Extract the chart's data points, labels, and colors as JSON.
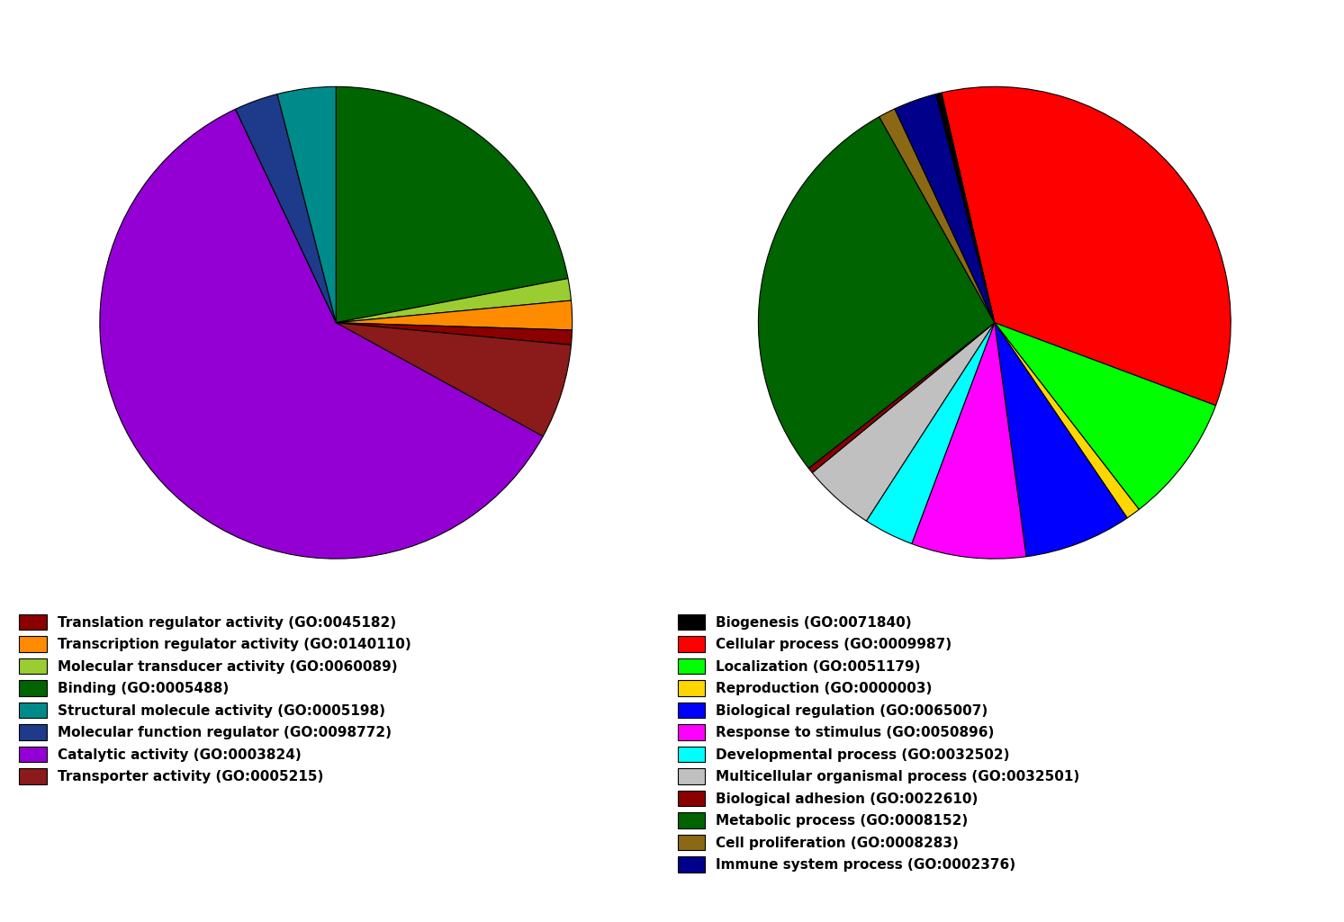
{
  "left_pie": {
    "labels": [
      "Binding (GO:0005488)",
      "Molecular transducer activity (GO:0060089)",
      "Transcription regulator activity (GO:0140110)",
      "Translation regulator activity (GO:0045182)",
      "Transporter activity (GO:0005215)",
      "Catalytic activity (GO:0003824)",
      "Molecular function regulator (GO:0098772)",
      "Structural molecule activity (GO:0005198)"
    ],
    "values": [
      22.0,
      1.5,
      2.0,
      1.0,
      6.5,
      60.0,
      3.0,
      4.0
    ],
    "colors": [
      "#006400",
      "#9ACD32",
      "#FF8C00",
      "#8B0000",
      "#8B1A1A",
      "#9400D3",
      "#1E3A8A",
      "#008B8B"
    ]
  },
  "right_pie": {
    "labels": [
      "Cellular process (GO:0009987)",
      "Localization (GO:0051179)",
      "Reproduction (GO:0000003)",
      "Biological regulation (GO:0065007)",
      "Response to stimulus (GO:0050896)",
      "Developmental process (GO:0032502)",
      "Multicellular organismal process (GO:0032501)",
      "Biological adhesion (GO:0022610)",
      "Metabolic process (GO:0008152)",
      "Cell proliferation (GO:0008283)",
      "Immune system process (GO:0002376)",
      "Biogenesis (GO:0071840)"
    ],
    "values": [
      35.0,
      9.0,
      1.0,
      7.5,
      8.0,
      3.5,
      5.0,
      0.4,
      28.0,
      1.2,
      3.0,
      0.4
    ],
    "colors": [
      "#FF0000",
      "#00FF00",
      "#FFD700",
      "#0000FF",
      "#FF00FF",
      "#00FFFF",
      "#C0C0C0",
      "#8B0000",
      "#006400",
      "#8B6914",
      "#00008B",
      "#000000"
    ]
  },
  "left_legend_labels": [
    "Translation regulator activity (GO:0045182)",
    "Transcription regulator activity (GO:0140110)",
    "Molecular transducer activity (GO:0060089)",
    "Binding (GO:0005488)",
    "Structural molecule activity (GO:0005198)",
    "Molecular function regulator (GO:0098772)",
    "Catalytic activity (GO:0003824)",
    "Transporter activity (GO:0005215)"
  ],
  "left_legend_colors": [
    "#8B0000",
    "#FF8C00",
    "#9ACD32",
    "#006400",
    "#008B8B",
    "#1E3A8A",
    "#9400D3",
    "#8B1A1A"
  ],
  "right_legend_labels": [
    "Biogenesis (GO:0071840)",
    "Cellular process (GO:0009987)",
    "Localization (GO:0051179)",
    "Reproduction (GO:0000003)",
    "Biological regulation (GO:0065007)",
    "Response to stimulus (GO:0050896)",
    "Developmental process (GO:0032502)",
    "Multicellular organismal process (GO:0032501)",
    "Biological adhesion (GO:0022610)",
    "Metabolic process (GO:0008152)",
    "Cell proliferation (GO:0008283)",
    "Immune system process (GO:0002376)"
  ],
  "right_legend_colors": [
    "#000000",
    "#FF0000",
    "#00FF00",
    "#FFD700",
    "#0000FF",
    "#FF00FF",
    "#00FFFF",
    "#C0C0C0",
    "#8B0000",
    "#006400",
    "#8B6914",
    "#00008B"
  ]
}
